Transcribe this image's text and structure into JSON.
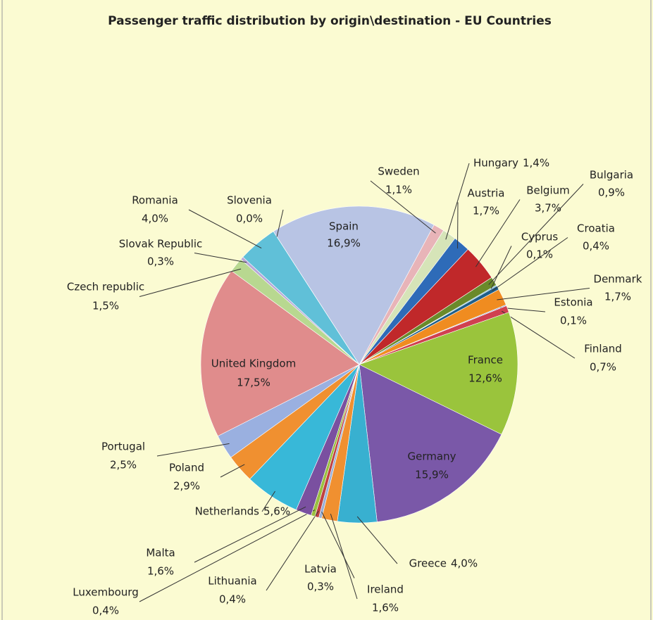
{
  "chart_data": {
    "type": "pie",
    "title": "Passenger traffic distribution by origin\\destination - EU Countries",
    "categories": [
      "Spain",
      "Sweden",
      "Hungary",
      "Austria",
      "Belgium",
      "Bulgaria",
      "Cyprus",
      "Croatia",
      "Denmark",
      "Estonia",
      "Finland",
      "France",
      "Germany",
      "Greece",
      "Ireland",
      "Latvia",
      "Lithuania",
      "Luxembourg",
      "Malta",
      "Netherlands",
      "Poland",
      "Portugal",
      "United Kingdom",
      "Czech republic",
      "Slovak Republic",
      "Romania",
      "Slovenia"
    ],
    "values": [
      16.9,
      1.1,
      1.4,
      1.7,
      3.7,
      0.9,
      0.1,
      0.4,
      1.7,
      0.1,
      0.7,
      12.6,
      15.9,
      4.0,
      1.6,
      0.3,
      0.4,
      0.4,
      1.6,
      5.6,
      2.9,
      2.5,
      17.5,
      1.5,
      0.3,
      4.0,
      0.0
    ],
    "value_labels": [
      "16,9%",
      "1,1%",
      "1,4%",
      "1,7%",
      "3,7%",
      "0,9%",
      "0,1%",
      "0,4%",
      "1,7%",
      "0,1%",
      "0,7%",
      "12,6%",
      "15,9%",
      "4,0%",
      "1,6%",
      "0,3%",
      "0,4%",
      "0,4%",
      "1,6%",
      "5,6%",
      "2,9%",
      "2,5%",
      "17,5%",
      "1,5%",
      "0,3%",
      "4,0%",
      "0,0%"
    ],
    "colors": [
      "#b8c4e4",
      "#e8b4b8",
      "#d6e4b8",
      "#2e6bb8",
      "#c0282a",
      "#6a8a2a",
      "#4aa8c8",
      "#1f5f8a",
      "#f08c20",
      "#8aa8d8",
      "#d04050",
      "#9ac43c",
      "#7a58a8",
      "#38b0d0",
      "#f09030",
      "#9ab0d8",
      "#c04040",
      "#9ac040",
      "#7a50a0",
      "#38b8d8",
      "#f09030",
      "#9ab0e0",
      "#e08c8c",
      "#b8d890",
      "#b8a8d8",
      "#60c0d8",
      "#f8c090"
    ]
  }
}
